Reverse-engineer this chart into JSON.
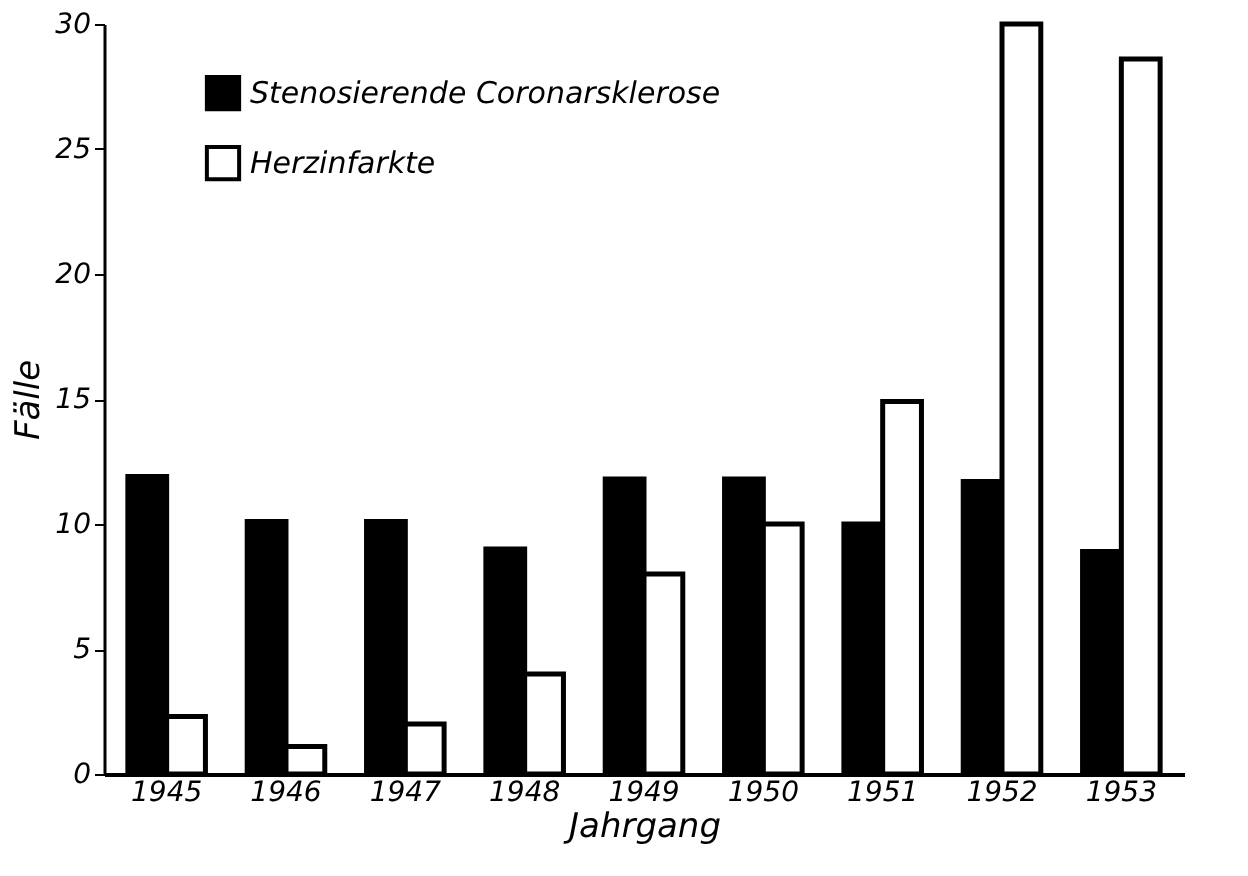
{
  "chart_data": {
    "type": "bar",
    "xlabel": "Jahrgang",
    "ylabel": "Fälle",
    "categories": [
      "1945",
      "1946",
      "1947",
      "1948",
      "1949",
      "1950",
      "1951",
      "1952",
      "1953"
    ],
    "series": [
      {
        "name": "Stenosierende Coronarsklerose",
        "color": "#000000",
        "values": [
          11.9,
          10.1,
          10.1,
          9.0,
          11.8,
          11.8,
          10.0,
          11.7,
          8.9
        ]
      },
      {
        "name": "Herzinfarkte",
        "color": "#ffffff",
        "values": [
          2.3,
          1.1,
          2.0,
          4.0,
          8.0,
          10.0,
          14.9,
          30.0,
          28.6
        ]
      }
    ],
    "ylim": [
      0,
      30
    ],
    "yticks": [
      0,
      5,
      10,
      15,
      20,
      25,
      30
    ],
    "grid": false,
    "legend": "top left"
  }
}
